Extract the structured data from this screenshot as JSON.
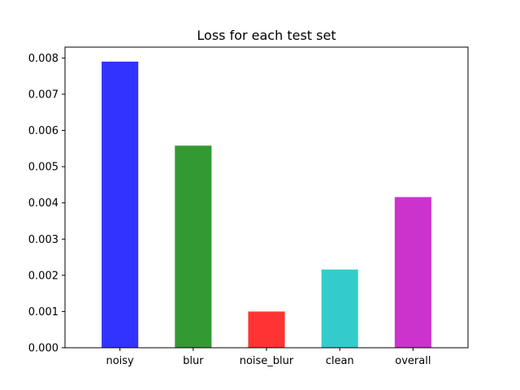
{
  "chart_data": {
    "type": "bar",
    "title": "Loss for each test set",
    "xlabel": "",
    "ylabel": "",
    "categories": [
      "noisy",
      "blur",
      "noise_blur",
      "clean",
      "overall"
    ],
    "values": [
      0.0079,
      0.00558,
      0.001,
      0.00216,
      0.00416
    ],
    "colors": [
      "#3333ff",
      "#339933",
      "#ff3333",
      "#33cccc",
      "#cc33cc"
    ],
    "ylim": [
      0,
      0.0083
    ],
    "yticks": [
      0.0,
      0.001,
      0.002,
      0.003,
      0.004,
      0.005,
      0.006,
      0.007,
      0.008
    ],
    "ytick_labels": [
      "0.000",
      "0.001",
      "0.002",
      "0.003",
      "0.004",
      "0.005",
      "0.006",
      "0.007",
      "0.008"
    ],
    "grid": false,
    "legend": "none"
  }
}
